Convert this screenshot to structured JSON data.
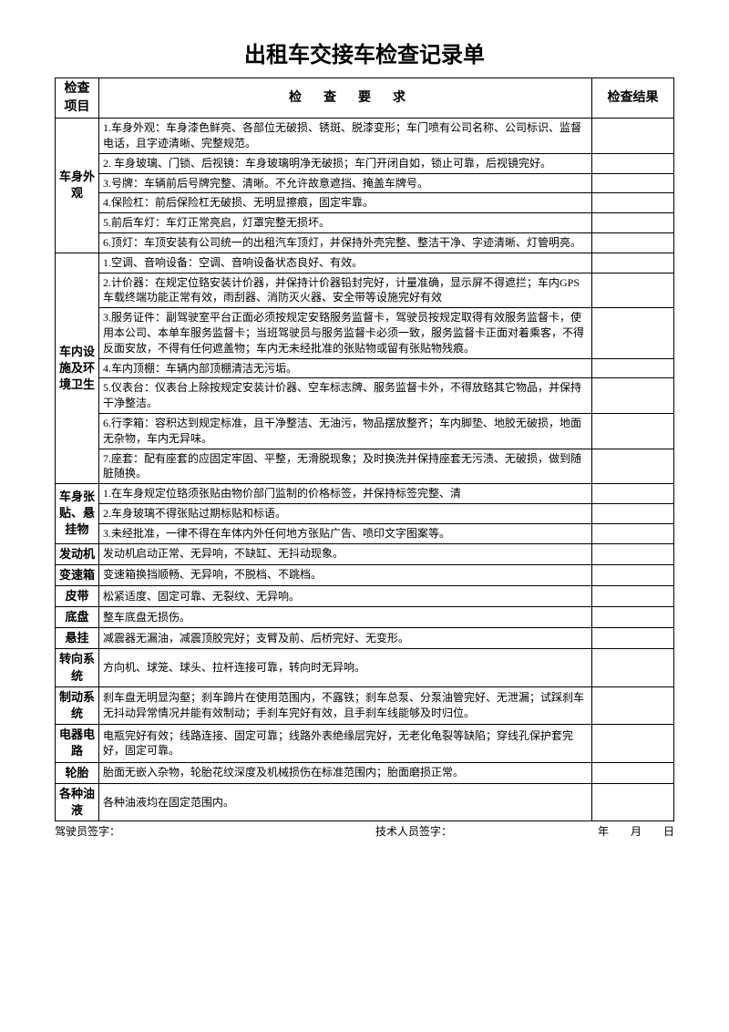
{
  "title": "出租车交接车检查记录单",
  "headers": {
    "category": "检查项目",
    "requirement": "检查要求",
    "result": "检查结果"
  },
  "sections": [
    {
      "category": "车身外观",
      "items": [
        "1.车身外观：车身漆色鲜亮、各部位无破损、锈斑、脱漆变形；车门喷有公司名称、公司标识、监督电话，且字迹清晰、完整规范。",
        "2. 车身玻璃、门锁、后视镜：车身玻璃明净无破损；车门开闭自如，锁止可靠，后视镜完好。",
        "3.号牌：车辆前后号牌完整、清晰。不允许故意遮挡、掩盖车牌号。",
        "4.保险杠：前后保险杠无破损、无明显擦痕，固定牢靠。",
        "5.前后车灯：车灯正常亮启，灯罩完整无损坏。",
        "6.顶灯：车顶安装有公司统一的出租汽车顶灯，并保持外壳完整、整洁干净、字迹清晰、灯管明亮。"
      ]
    },
    {
      "category": "车内设施及环境卫生",
      "items": [
        "1.空调、音响设备：空调、音响设备状态良好、有效。",
        "2.计价器：在规定位臵安装计价器，并保持计价器铅封完好，计量准确，显示屏不得遮拦；车内GPS车载终端功能正常有效，雨刮器、消防灭火器、安全带等设施完好有效",
        "3.服务证件：副驾驶室平台正面必须按规定安臵服务监督卡，驾驶员按规定取得有效服务监督卡，使用本公司、本单车服务监督卡；当班驾驶员与服务监督卡必须一致，服务监督卡正面对着乘客，不得反面安放，不得有任何遮盖物；车内无未经批准的张贴物或留有张贴物残痕。",
        "4.车内顶棚：车辆内部顶棚清洁无污垢。",
        "5.仪表台：仪表台上除按规定安装计价器、空车标志牌、服务监督卡外，不得放臵其它物品，并保持干净整洁。",
        "6.行李箱：容积达到规定标准，且干净整洁、无油污，物品摆放整齐；车内脚垫、地胶无破损，地面无杂物，车内无异味。",
        "7.座套：配有座套的应固定牢固、平整，无滑脱现象；及时换洗并保持座套无污渍、无破损，做到随脏随换。"
      ]
    },
    {
      "category": "车身张贴、悬挂物",
      "items": [
        "1.在车身规定位臵须张贴由物价部门监制的价格标签，并保持标签完整、清",
        "2.车身玻璃不得张贴过期标贴和标语。",
        "3.未经批准，一律不得在车体内外任何地方张贴广告、喷印文字图案等。"
      ]
    },
    {
      "category": "发动机",
      "items": [
        "发动机启动正常、无异响，不缺缸、无抖动现象。"
      ]
    },
    {
      "category": "变速箱",
      "items": [
        "变速箱换挡顺畅、无异响，不脱档、不跳档。"
      ]
    },
    {
      "category": "皮带",
      "items": [
        "松紧适度、固定可靠、无裂纹、无异响。"
      ]
    },
    {
      "category": "底盘",
      "items": [
        "整车底盘无损伤。"
      ]
    },
    {
      "category": "悬挂",
      "items": [
        "减震器无漏油，减震顶胶完好；支臂及前、后桥完好、无变形。"
      ]
    },
    {
      "category": "转向系统",
      "items": [
        "方向机、球笼、球头、拉杆连接可靠，转向时无异响。"
      ]
    },
    {
      "category": "制动系统",
      "items": [
        "刹车盘无明显沟壑；刹车蹄片在使用范围内，不露铁；刹车总泵、分泵油管完好、无泄漏；试踩刹车无抖动异常情况并能有效制动；手刹车完好有效，且手刹车线能够及时归位。"
      ]
    },
    {
      "category": "电器电路",
      "items": [
        "电瓶完好有效；线路连接、固定可靠；线路外表绝缘层完好，无老化龟裂等缺陷；穿线孔保护套完好，固定可靠。"
      ]
    },
    {
      "category": "轮胎",
      "items": [
        "胎面无嵌入杂物，轮胎花纹深度及机械损伤在标准范围内；胎面磨损正常。"
      ]
    },
    {
      "category": "各种油液",
      "items": [
        "各种油液均在固定范围内。"
      ]
    }
  ],
  "footer": {
    "driver": "驾驶员签字：",
    "technician": "技术人员签字：",
    "date": "年　　月　　日"
  }
}
